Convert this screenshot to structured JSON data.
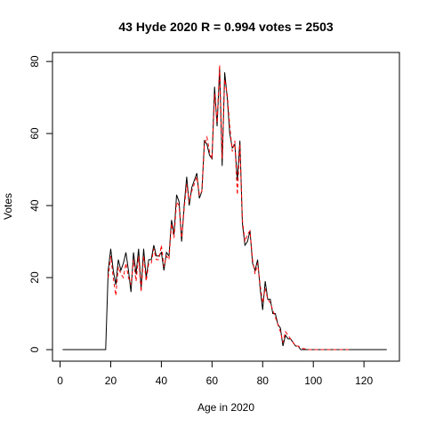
{
  "chart_data": {
    "type": "line",
    "title": "43 Hyde 2020 R = 0.994 votes = 2503",
    "xlabel": "Age in 2020",
    "ylabel": "Votes",
    "xlim": [
      -3,
      134
    ],
    "ylim": [
      -3.2,
      82.5
    ],
    "xticks": [
      0,
      20,
      40,
      60,
      80,
      100,
      120
    ],
    "yticks": [
      0,
      20,
      40,
      60,
      80
    ],
    "grid": false,
    "legend": "none",
    "series": [
      {
        "color": "#000000",
        "dash": "solid",
        "x": [
          1,
          2,
          3,
          4,
          5,
          6,
          7,
          8,
          9,
          10,
          11,
          12,
          13,
          14,
          15,
          16,
          17,
          18,
          19,
          20,
          21,
          22,
          23,
          24,
          25,
          26,
          27,
          28,
          29,
          30,
          31,
          32,
          33,
          34,
          35,
          36,
          37,
          38,
          39,
          40,
          41,
          42,
          43,
          44,
          45,
          46,
          47,
          48,
          49,
          50,
          51,
          52,
          53,
          54,
          55,
          56,
          57,
          58,
          59,
          60,
          61,
          62,
          63,
          64,
          65,
          66,
          67,
          68,
          69,
          70,
          71,
          72,
          73,
          74,
          75,
          76,
          77,
          78,
          79,
          80,
          81,
          82,
          83,
          84,
          85,
          86,
          87,
          88,
          89,
          90,
          91,
          92,
          93,
          94,
          95,
          96,
          97,
          98,
          99,
          100,
          101,
          102,
          103,
          104,
          105,
          106,
          107,
          108,
          109,
          110,
          111,
          112,
          113,
          114,
          115,
          116,
          117,
          118,
          119,
          120,
          121,
          122,
          123,
          124,
          125,
          126,
          127,
          128,
          129
        ],
        "y": [
          0,
          0,
          0,
          0,
          0,
          0,
          0,
          0,
          0,
          0,
          0,
          0,
          0,
          0,
          0,
          0,
          0,
          0,
          22,
          28,
          22,
          18,
          25,
          22,
          24,
          27,
          22,
          16,
          27,
          21,
          28,
          17,
          28,
          20,
          25,
          25,
          29,
          26,
          26,
          27,
          22,
          27,
          26,
          36,
          32,
          43,
          41,
          30,
          40,
          48,
          40,
          45,
          47,
          49,
          42,
          44,
          58,
          57,
          54,
          53,
          73,
          62,
          78,
          51,
          77,
          70,
          60,
          56,
          57,
          47,
          58,
          35,
          29,
          30,
          33,
          24,
          22,
          25,
          17,
          11,
          19,
          14,
          14,
          10,
          10,
          7,
          6,
          1,
          4,
          3,
          3,
          2,
          1,
          1,
          0,
          0,
          0,
          0,
          0,
          0,
          0,
          0,
          0,
          0,
          0,
          0,
          0,
          0,
          0,
          0,
          0,
          0,
          0,
          0,
          0,
          0,
          0,
          0,
          0,
          0,
          0,
          0,
          0,
          0,
          0,
          0,
          0,
          0,
          0
        ]
      },
      {
        "color": "#ff0000",
        "dash": "dashed",
        "x": [
          19,
          20,
          21,
          22,
          23,
          24,
          25,
          26,
          27,
          28,
          29,
          30,
          31,
          32,
          33,
          34,
          35,
          36,
          37,
          38,
          39,
          40,
          41,
          42,
          43,
          44,
          45,
          46,
          47,
          48,
          49,
          50,
          51,
          52,
          53,
          54,
          55,
          56,
          57,
          58,
          59,
          60,
          61,
          62,
          63,
          64,
          65,
          66,
          67,
          68,
          69,
          70,
          71,
          72,
          73,
          74,
          75,
          76,
          77,
          78,
          79,
          80,
          81,
          82,
          83,
          84,
          85,
          86,
          87,
          88,
          89,
          90,
          91,
          92,
          93,
          94,
          95,
          96,
          97,
          98,
          99,
          100,
          101,
          102,
          103,
          104,
          105,
          106,
          107,
          108,
          109,
          110,
          111,
          112,
          113,
          114
        ],
        "y": [
          20,
          26,
          20,
          15,
          23,
          21,
          20,
          24,
          20,
          18,
          25,
          19,
          26,
          16,
          26,
          19,
          24,
          24,
          28,
          25,
          25,
          29,
          23,
          26,
          25,
          35,
          31,
          41,
          40,
          31,
          39,
          46,
          41,
          44,
          46,
          48,
          43,
          44,
          57,
          59,
          55,
          53,
          71,
          63,
          79,
          53,
          75,
          71,
          62,
          55,
          58,
          43,
          57,
          36,
          30,
          32,
          33,
          25,
          21,
          24,
          18,
          13,
          17,
          14,
          13,
          11,
          9,
          7,
          5,
          2,
          5,
          4,
          3,
          2,
          1,
          1,
          0.5,
          0.3,
          0.2,
          0,
          0,
          0,
          0,
          0,
          0,
          0,
          0,
          0,
          0,
          0,
          0,
          0,
          0,
          0,
          0,
          0
        ]
      }
    ]
  }
}
